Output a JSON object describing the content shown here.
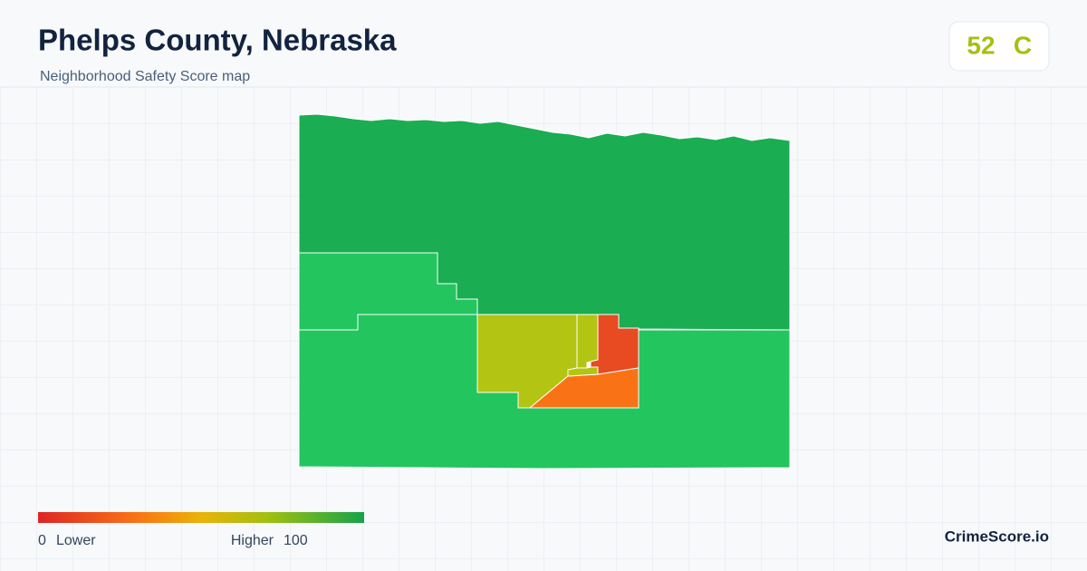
{
  "header": {
    "title": "Phelps County, Nebraska",
    "subtitle": "Neighborhood Safety Score map"
  },
  "score": {
    "value": "52",
    "grade": "C"
  },
  "legend": {
    "min": "0",
    "min_label": "Lower",
    "max_label": "Higher",
    "max": "100"
  },
  "brand": "CrimeScore.io"
}
